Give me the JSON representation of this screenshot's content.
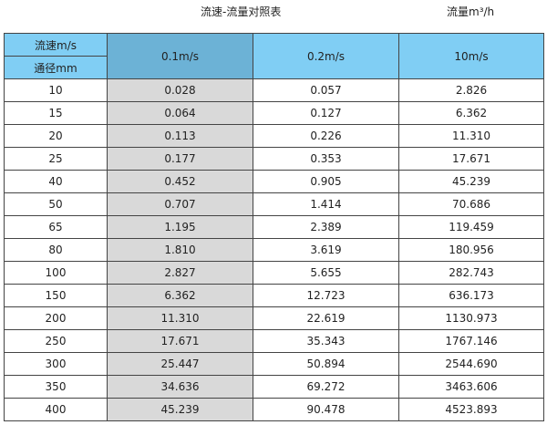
{
  "title": "流速-流量对照表",
  "unit_label": "流量m³/h",
  "header": {
    "velocity_label": "流速m/s",
    "diameter_label": "通径mm",
    "columns": [
      "0.1m/s",
      "0.2m/s",
      "10m/s"
    ]
  },
  "rows": [
    [
      "10",
      "0.028",
      "0.057",
      "2.826"
    ],
    [
      "15",
      "0.064",
      "0.127",
      "6.362"
    ],
    [
      "20",
      "0.113",
      "0.226",
      "11.310"
    ],
    [
      "25",
      "0.177",
      "0.353",
      "17.671"
    ],
    [
      "40",
      "0.452",
      "0.905",
      "45.239"
    ],
    [
      "50",
      "0.707",
      "1.414",
      "70.686"
    ],
    [
      "65",
      "1.195",
      "2.389",
      "119.459"
    ],
    [
      "80",
      "1.810",
      "3.619",
      "180.956"
    ],
    [
      "100",
      "2.827",
      "5.655",
      "282.743"
    ],
    [
      "150",
      "6.362",
      "12.723",
      "636.173"
    ],
    [
      "200",
      "11.310",
      "22.619",
      "1130.973"
    ],
    [
      "250",
      "17.671",
      "35.343",
      "1767.146"
    ],
    [
      "300",
      "25.447",
      "50.894",
      "2544.690"
    ],
    [
      "350",
      "34.636",
      "69.272",
      "3463.606"
    ],
    [
      "400",
      "45.239",
      "90.478",
      "4523.893"
    ]
  ],
  "colors": {
    "header": "#80cef4",
    "header_highlight": "#6cb2d6",
    "column_highlight": "#d9d9d9"
  }
}
